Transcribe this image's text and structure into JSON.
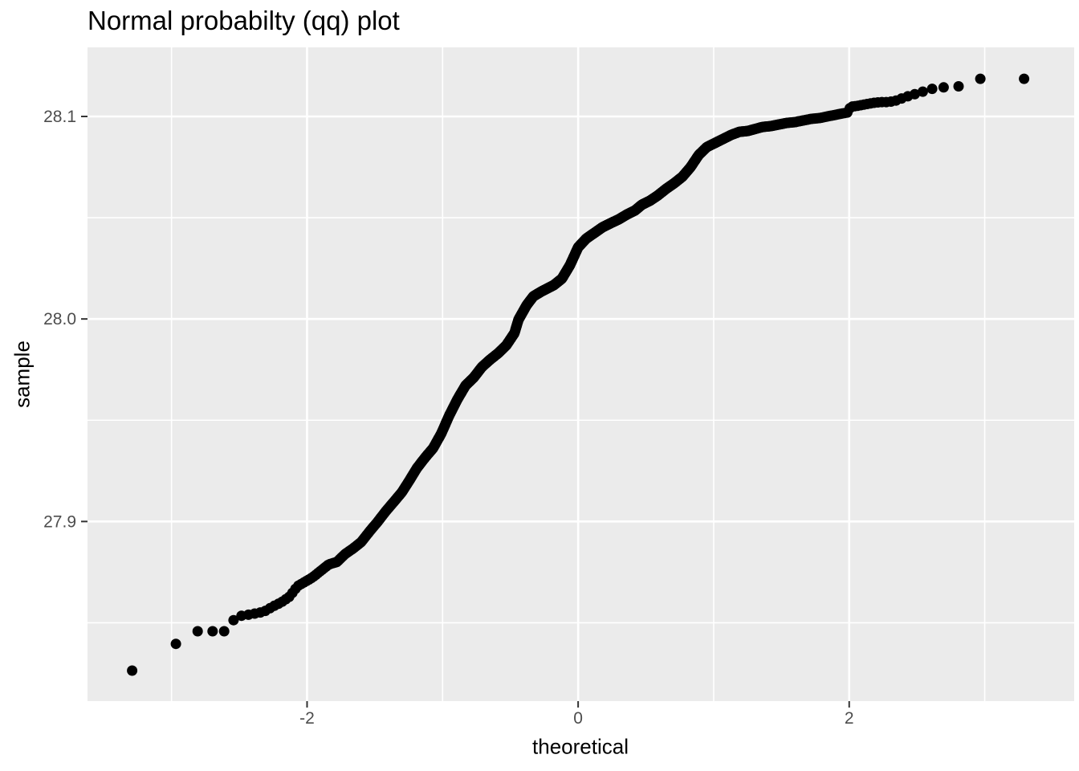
{
  "page": {
    "background": "#FFFFFF"
  },
  "chart_data": {
    "type": "scatter",
    "variant": "qq-plot",
    "title": "Normal probabilty (qq) plot",
    "xlabel": "theoretical",
    "ylabel": "sample",
    "legend": "none",
    "grid": "on",
    "x_ticks": [
      {
        "value": -2,
        "label": "-2"
      },
      {
        "value": 0,
        "label": "0"
      },
      {
        "value": 2,
        "label": "2"
      }
    ],
    "y_ticks": [
      {
        "value": 27.9,
        "label": "27.9"
      },
      {
        "value": 28.0,
        "label": "28.0"
      },
      {
        "value": 28.1,
        "label": "28.1"
      }
    ],
    "x_minor_gridlines": [
      -3,
      -1,
      1,
      3
    ],
    "y_minor_gridlines": [
      27.85,
      27.95,
      28.05
    ],
    "xlim": [
      -3.62,
      3.66
    ],
    "ylim": [
      27.8113,
      28.1341
    ],
    "n_points": 1000,
    "point_style": {
      "color": "#000000",
      "radius": 6.5
    },
    "theme": {
      "panel_background": "#EBEBEB",
      "gridline_color": "#FFFFFF",
      "major_grid_width": 2.6,
      "minor_grid_width": 1.6,
      "tick_color": "#333333",
      "tick_label_color": "#4D4D4D",
      "text_color": "#000000"
    },
    "quantile_curve": [
      [
        -3.3,
        27.826
      ],
      [
        -2.97,
        27.8395
      ],
      [
        -2.81,
        27.8458
      ],
      [
        -2.6,
        27.8458
      ],
      [
        -2.55,
        27.851
      ],
      [
        -2.49,
        27.8534
      ],
      [
        -2.41,
        27.8542
      ],
      [
        -2.35,
        27.855
      ],
      [
        -2.31,
        27.8558
      ],
      [
        -2.25,
        27.8581
      ],
      [
        -2.19,
        27.8601
      ],
      [
        -2.13,
        27.8629
      ],
      [
        -2.07,
        27.8681
      ],
      [
        -2.01,
        27.8704
      ],
      [
        -1.96,
        27.8724
      ],
      [
        -1.9,
        27.8756
      ],
      [
        -1.84,
        27.8788
      ],
      [
        -1.78,
        27.88
      ],
      [
        -1.72,
        27.8839
      ],
      [
        -1.66,
        27.8867
      ],
      [
        -1.6,
        27.8899
      ],
      [
        -1.54,
        27.895
      ],
      [
        -1.48,
        27.8998
      ],
      [
        -1.42,
        27.905
      ],
      [
        -1.36,
        27.9097
      ],
      [
        -1.3,
        27.9145
      ],
      [
        -1.24,
        27.9208
      ],
      [
        -1.19,
        27.9263
      ],
      [
        -1.13,
        27.9315
      ],
      [
        -1.07,
        27.9362
      ],
      [
        -1.01,
        27.9434
      ],
      [
        -0.95,
        27.9525
      ],
      [
        -0.89,
        27.9604
      ],
      [
        -0.83,
        27.9672
      ],
      [
        -0.77,
        27.9711
      ],
      [
        -0.71,
        27.9763
      ],
      [
        -0.65,
        27.9799
      ],
      [
        -0.59,
        27.9831
      ],
      [
        -0.53,
        27.987
      ],
      [
        -0.47,
        27.993
      ],
      [
        -0.44,
        27.9997
      ],
      [
        -0.38,
        28.0068
      ],
      [
        -0.33,
        28.0112
      ],
      [
        -0.27,
        28.0136
      ],
      [
        -0.18,
        28.0167
      ],
      [
        -0.12,
        28.0199
      ],
      [
        -0.06,
        28.0266
      ],
      [
        0.0,
        28.0354
      ],
      [
        0.06,
        28.0397
      ],
      [
        0.12,
        28.0425
      ],
      [
        0.18,
        28.0453
      ],
      [
        0.24,
        28.0473
      ],
      [
        0.3,
        28.0492
      ],
      [
        0.36,
        28.0516
      ],
      [
        0.42,
        28.0536
      ],
      [
        0.47,
        28.0564
      ],
      [
        0.53,
        28.0584
      ],
      [
        0.59,
        28.0611
      ],
      [
        0.65,
        28.0643
      ],
      [
        0.71,
        28.0671
      ],
      [
        0.77,
        28.0703
      ],
      [
        0.83,
        28.075
      ],
      [
        0.89,
        28.081
      ],
      [
        0.95,
        28.0849
      ],
      [
        1.01,
        28.0869
      ],
      [
        1.07,
        28.0889
      ],
      [
        1.13,
        28.0909
      ],
      [
        1.19,
        28.0924
      ],
      [
        1.25,
        28.0928
      ],
      [
        1.3,
        28.0937
      ],
      [
        1.36,
        28.0948
      ],
      [
        1.42,
        28.0952
      ],
      [
        1.48,
        28.096
      ],
      [
        1.54,
        28.0968
      ],
      [
        1.6,
        28.0972
      ],
      [
        1.66,
        28.098
      ],
      [
        1.72,
        28.0988
      ],
      [
        1.78,
        28.0992
      ],
      [
        1.84,
        28.1
      ],
      [
        1.9,
        28.1008
      ],
      [
        1.96,
        28.1016
      ],
      [
        1.99,
        28.102
      ],
      [
        2.01,
        28.1048
      ],
      [
        2.06,
        28.1052
      ],
      [
        2.12,
        28.106
      ],
      [
        2.18,
        28.1067
      ],
      [
        2.23,
        28.1071
      ],
      [
        2.29,
        28.1071
      ],
      [
        2.35,
        28.1079
      ],
      [
        2.41,
        28.1095
      ],
      [
        2.49,
        28.1111
      ],
      [
        2.6,
        28.1135
      ],
      [
        2.68,
        28.1143
      ],
      [
        2.8,
        28.1147
      ],
      [
        2.95,
        28.1186
      ],
      [
        3.3,
        28.1186
      ]
    ]
  }
}
